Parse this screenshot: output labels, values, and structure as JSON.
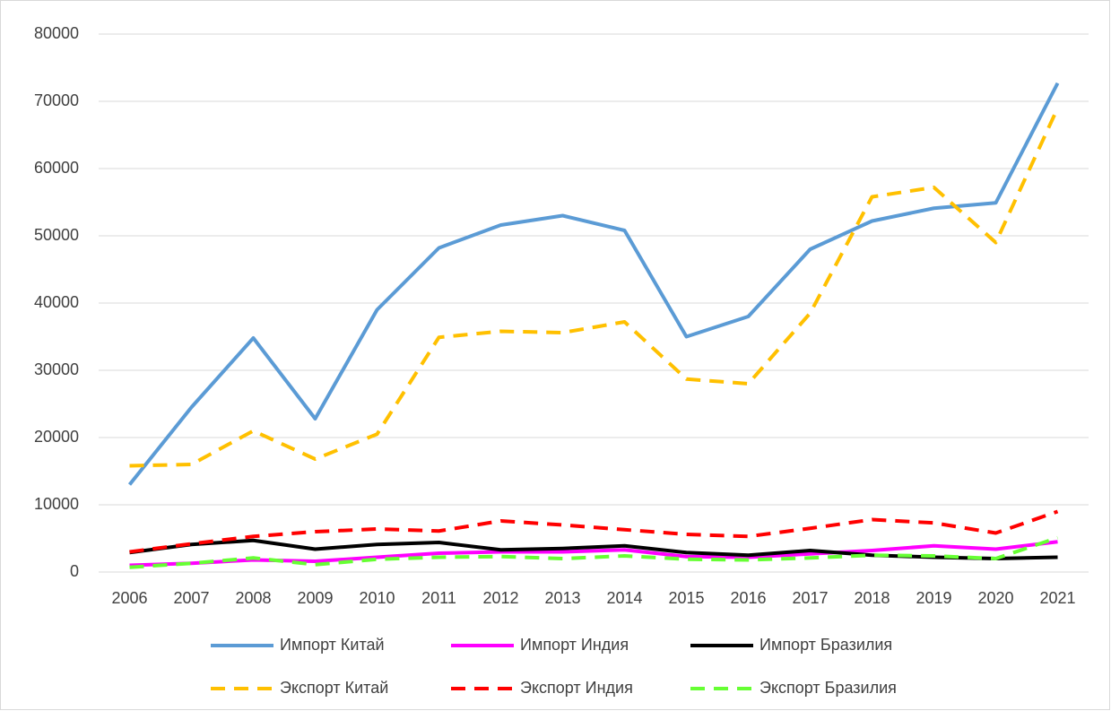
{
  "chart_data": {
    "type": "line",
    "categories": [
      "2006",
      "2007",
      "2008",
      "2009",
      "2010",
      "2011",
      "2012",
      "2013",
      "2014",
      "2015",
      "2016",
      "2017",
      "2018",
      "2019",
      "2020",
      "2021"
    ],
    "series": [
      {
        "name": "Импорт Китай",
        "color": "#5b9bd5",
        "dashed": false,
        "values": [
          13000,
          24500,
          34800,
          22800,
          39000,
          48200,
          51600,
          53000,
          50800,
          35000,
          38000,
          48000,
          52200,
          54100,
          54900,
          72700
        ]
      },
      {
        "name": "Импорт Индия",
        "color": "#ff00ff",
        "dashed": false,
        "values": [
          1000,
          1300,
          1800,
          1600,
          2200,
          2800,
          3000,
          3000,
          3300,
          2300,
          2200,
          2700,
          3200,
          3900,
          3400,
          4500
        ]
      },
      {
        "name": "Импорт Бразилия",
        "color": "#000000",
        "dashed": false,
        "values": [
          2900,
          4100,
          4700,
          3400,
          4100,
          4400,
          3300,
          3500,
          3900,
          2900,
          2500,
          3200,
          2500,
          2200,
          2000,
          2200
        ]
      },
      {
        "name": "Экспорт Китай",
        "color": "#ffc000",
        "dashed": true,
        "values": [
          15800,
          16000,
          21000,
          16800,
          20500,
          34900,
          35800,
          35600,
          37200,
          28700,
          28000,
          38500,
          55800,
          57200,
          49000,
          69000
        ]
      },
      {
        "name": "Экспорт Индия",
        "color": "#ff0000",
        "dashed": true,
        "values": [
          3000,
          4200,
          5300,
          6000,
          6400,
          6100,
          7600,
          7000,
          6300,
          5600,
          5300,
          6500,
          7800,
          7300,
          5800,
          9000
        ]
      },
      {
        "name": "Экспорт Бразилия",
        "color": "#66ff33",
        "dashed": true,
        "values": [
          700,
          1300,
          2100,
          1100,
          1900,
          2200,
          2300,
          2000,
          2400,
          1900,
          1800,
          2100,
          2500,
          2400,
          2000,
          5100
        ]
      }
    ],
    "ylim": [
      0,
      80000
    ],
    "yticks": [
      0,
      10000,
      20000,
      30000,
      40000,
      50000,
      60000,
      70000,
      80000
    ],
    "grid": true
  }
}
